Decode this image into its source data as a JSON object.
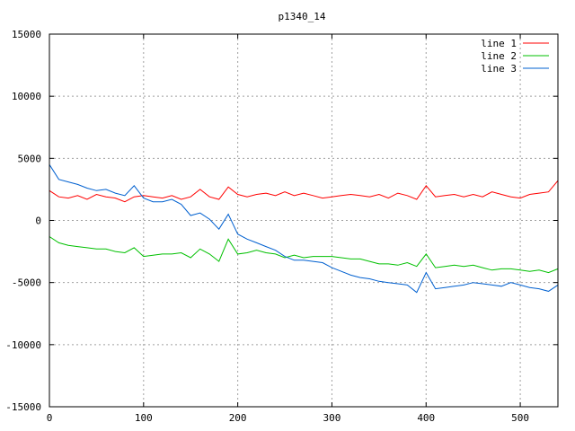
{
  "chart_data": {
    "type": "line",
    "title": "p1340_14",
    "xlabel": "",
    "ylabel": "",
    "xlim": [
      0,
      540
    ],
    "ylim": [
      -15000,
      15000
    ],
    "xticks": [
      0,
      100,
      200,
      300,
      400,
      500
    ],
    "yticks": [
      -15000,
      -10000,
      -5000,
      0,
      5000,
      10000,
      15000
    ],
    "grid": true,
    "legend_position": "top-right",
    "series": [
      {
        "name": "line 1",
        "color": "#ff0000",
        "x": [
          0,
          10,
          20,
          30,
          40,
          50,
          60,
          70,
          80,
          90,
          100,
          110,
          120,
          130,
          140,
          150,
          160,
          170,
          180,
          190,
          200,
          210,
          220,
          230,
          240,
          250,
          260,
          270,
          280,
          290,
          300,
          310,
          320,
          330,
          340,
          350,
          360,
          370,
          380,
          390,
          400,
          410,
          420,
          430,
          440,
          450,
          460,
          470,
          480,
          490,
          500,
          510,
          520,
          530,
          540
        ],
        "y": [
          2400,
          1900,
          1800,
          2000,
          1700,
          2100,
          1900,
          1800,
          1500,
          1900,
          2000,
          1900,
          1800,
          2000,
          1700,
          1900,
          2500,
          1900,
          1700,
          2700,
          2100,
          1900,
          2100,
          2200,
          2000,
          2300,
          2000,
          2200,
          2000,
          1800,
          1900,
          2000,
          2100,
          2000,
          1900,
          2100,
          1800,
          2200,
          2000,
          1700,
          2800,
          1900,
          2000,
          2100,
          1900,
          2100,
          1900,
          2300,
          2100,
          1900,
          1800,
          2100,
          2200,
          2300,
          3200
        ]
      },
      {
        "name": "line 2",
        "color": "#00c000",
        "x": [
          0,
          10,
          20,
          30,
          40,
          50,
          60,
          70,
          80,
          90,
          100,
          110,
          120,
          130,
          140,
          150,
          160,
          170,
          180,
          190,
          200,
          210,
          220,
          230,
          240,
          250,
          260,
          270,
          280,
          290,
          300,
          310,
          320,
          330,
          340,
          350,
          360,
          370,
          380,
          390,
          400,
          410,
          420,
          430,
          440,
          450,
          460,
          470,
          480,
          490,
          500,
          510,
          520,
          530,
          540
        ],
        "y": [
          -1300,
          -1800,
          -2000,
          -2100,
          -2200,
          -2300,
          -2300,
          -2500,
          -2600,
          -2200,
          -2900,
          -2800,
          -2700,
          -2700,
          -2600,
          -3000,
          -2300,
          -2700,
          -3300,
          -1500,
          -2700,
          -2600,
          -2400,
          -2600,
          -2700,
          -3000,
          -2800,
          -3000,
          -2900,
          -2900,
          -2900,
          -3000,
          -3100,
          -3100,
          -3300,
          -3500,
          -3500,
          -3600,
          -3400,
          -3700,
          -2700,
          -3800,
          -3700,
          -3600,
          -3700,
          -3600,
          -3800,
          -4000,
          -3900,
          -3900,
          -4000,
          -4100,
          -4000,
          -4200,
          -3900
        ]
      },
      {
        "name": "line 3",
        "color": "#0060d0",
        "x": [
          0,
          10,
          20,
          30,
          40,
          50,
          60,
          70,
          80,
          90,
          100,
          110,
          120,
          130,
          140,
          150,
          160,
          170,
          180,
          190,
          200,
          210,
          220,
          230,
          240,
          250,
          260,
          270,
          280,
          290,
          300,
          310,
          320,
          330,
          340,
          350,
          360,
          370,
          380,
          390,
          400,
          410,
          420,
          430,
          440,
          450,
          460,
          470,
          480,
          490,
          500,
          510,
          520,
          530,
          540
        ],
        "y": [
          4500,
          3300,
          3100,
          2900,
          2600,
          2400,
          2500,
          2200,
          2000,
          2800,
          1800,
          1500,
          1500,
          1700,
          1300,
          400,
          600,
          100,
          -700,
          500,
          -1100,
          -1500,
          -1800,
          -2100,
          -2400,
          -2900,
          -3200,
          -3200,
          -3300,
          -3400,
          -3800,
          -4100,
          -4400,
          -4600,
          -4700,
          -4900,
          -5000,
          -5100,
          -5200,
          -5800,
          -4200,
          -5500,
          -5400,
          -5300,
          -5200,
          -5000,
          -5100,
          -5200,
          -5300,
          -5000,
          -5200,
          -5400,
          -5500,
          -5700,
          -5200
        ]
      }
    ]
  }
}
